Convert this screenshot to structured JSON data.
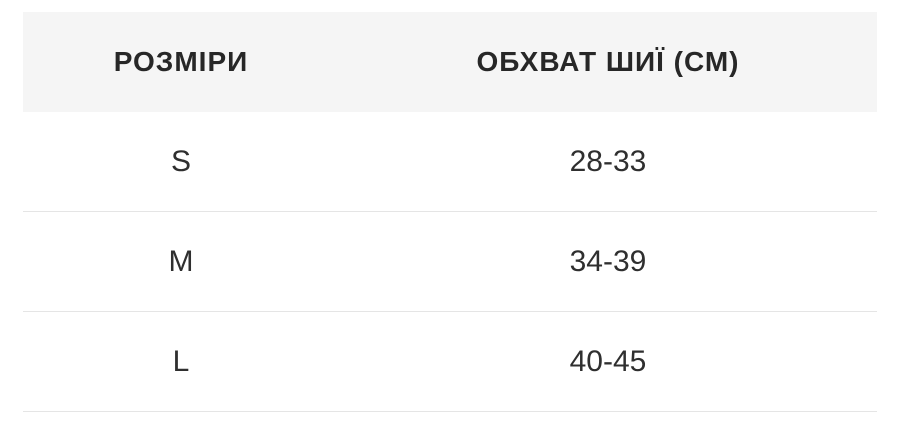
{
  "table": {
    "columns": [
      {
        "label": "РОЗМІРИ"
      },
      {
        "label": "ОБХВАТ ШИЇ (СМ)"
      }
    ],
    "rows": [
      {
        "size": "S",
        "neck": "28-33"
      },
      {
        "size": "M",
        "neck": "34-39"
      },
      {
        "size": "L",
        "neck": "40-45"
      }
    ]
  },
  "chart_data": {
    "type": "table",
    "columns": [
      "РОЗМІРИ",
      "ОБХВАТ ШИЇ (СМ)"
    ],
    "rows": [
      [
        "S",
        "28-33"
      ],
      [
        "M",
        "34-39"
      ],
      [
        "L",
        "40-45"
      ]
    ],
    "neck_ranges_cm": {
      "S": [
        28,
        33
      ],
      "M": [
        34,
        39
      ],
      "L": [
        40,
        45
      ]
    }
  },
  "colors": {
    "header_bg": "#f5f5f5",
    "divider": "#e5e5e5",
    "header_text": "#272727",
    "body_text": "#2f2f2f",
    "page_bg": "#ffffff"
  }
}
